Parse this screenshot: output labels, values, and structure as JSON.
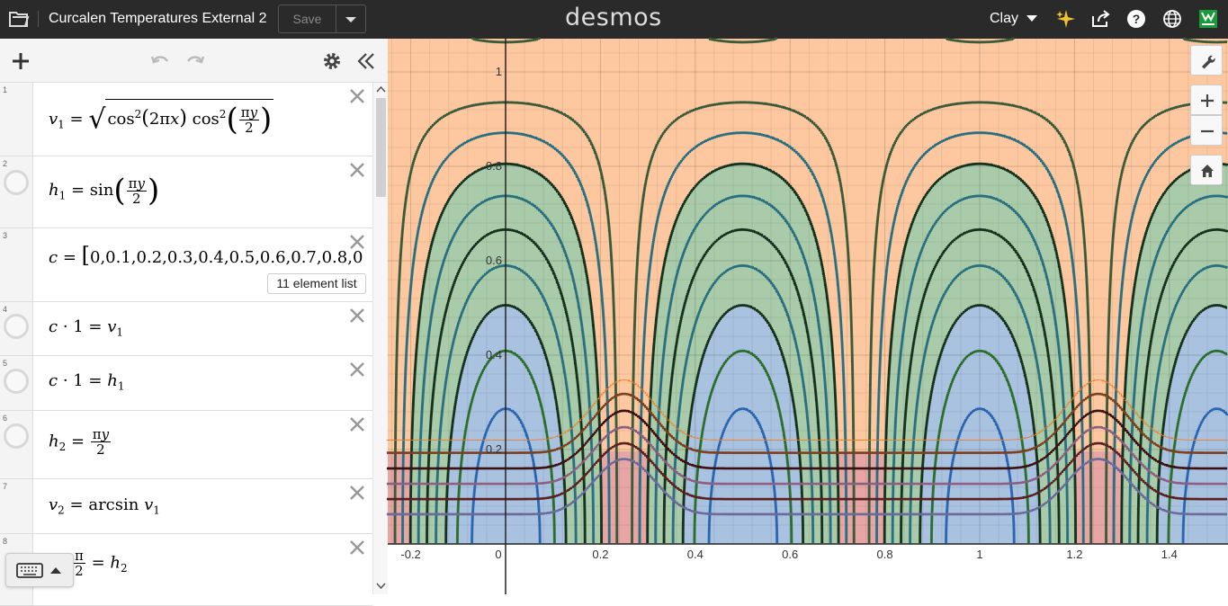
{
  "app": {
    "graph_title": "Curcalen Temperatures External 2",
    "save_label": "Save",
    "logo": "desmos",
    "user_name": "Clay"
  },
  "expressions": {
    "e1": {
      "num": "1"
    },
    "e2": {
      "num": "2"
    },
    "e3": {
      "num": "3",
      "list_info": "11 element list",
      "list_text": "0,0.1,0.2,0.3,0.4,0.5,0.6,0.7,0.8,0"
    },
    "e4": {
      "num": "4"
    },
    "e5": {
      "num": "5"
    },
    "e6": {
      "num": "6"
    },
    "e7": {
      "num": "7"
    },
    "e8": {
      "num": "8"
    }
  },
  "graph": {
    "x_ticks": [
      "-0.2",
      "0",
      "0.2",
      "0.4",
      "0.6",
      "0.8",
      "1",
      "1.2",
      "1.4"
    ],
    "y_ticks": [
      "1",
      "0.8",
      "0.6",
      "0.4",
      "0.2"
    ],
    "colors": {
      "orange_region": "#fdc8a0",
      "green_region": "#a9cba9",
      "blue_region": "#a9c2e0",
      "red_region": "#e8a5a5"
    }
  }
}
